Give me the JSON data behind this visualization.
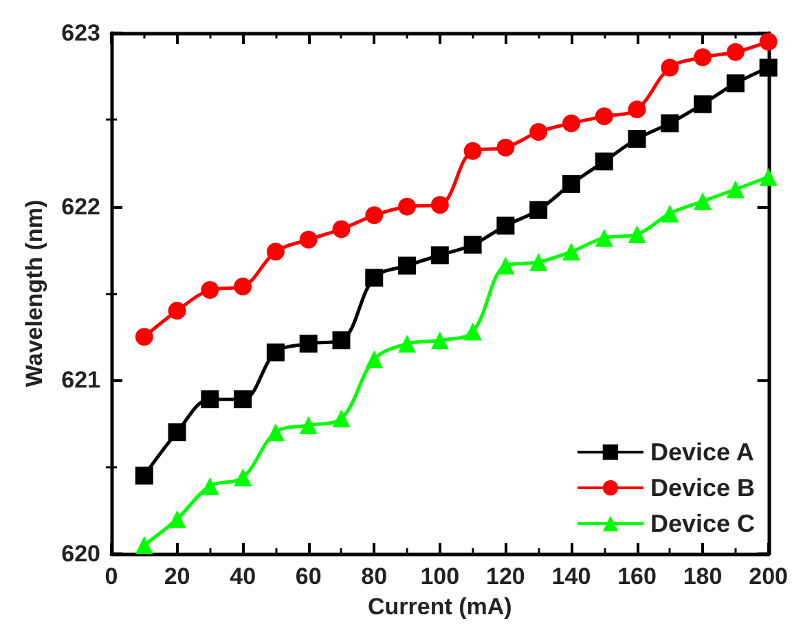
{
  "chart_data": {
    "type": "line",
    "xlabel": "Current (mA)",
    "ylabel": "Wavelength (nm)",
    "x": [
      10,
      20,
      30,
      40,
      50,
      60,
      70,
      80,
      90,
      100,
      110,
      120,
      130,
      140,
      150,
      160,
      170,
      180,
      190,
      200
    ],
    "series": [
      {
        "name": "Device A",
        "color": "#000000",
        "marker": "square",
        "values": [
          620.45,
          620.7,
          620.89,
          620.89,
          621.16,
          621.21,
          621.23,
          621.59,
          621.66,
          621.72,
          621.78,
          621.89,
          621.98,
          622.13,
          622.26,
          622.39,
          622.48,
          622.59,
          622.71,
          622.8
        ]
      },
      {
        "name": "Device B",
        "color": "#ff0000",
        "marker": "circle",
        "values": [
          621.25,
          621.4,
          621.52,
          621.54,
          621.74,
          621.81,
          621.87,
          621.95,
          622.0,
          622.01,
          622.32,
          622.34,
          622.43,
          622.48,
          622.52,
          622.56,
          622.8,
          622.86,
          622.89,
          622.95
        ]
      },
      {
        "name": "Device C",
        "color": "#00ff00",
        "marker": "triangle",
        "values": [
          620.05,
          620.2,
          620.39,
          620.44,
          620.7,
          620.74,
          620.78,
          621.12,
          621.21,
          621.23,
          621.28,
          621.66,
          621.68,
          621.74,
          621.82,
          621.84,
          621.96,
          622.03,
          622.1,
          622.17
        ]
      }
    ],
    "xlim": [
      0,
      200
    ],
    "xticks": [
      0,
      20,
      40,
      60,
      80,
      100,
      120,
      140,
      160,
      180,
      200
    ],
    "ylim": [
      620,
      623
    ],
    "yticks": [
      620,
      621,
      622,
      623
    ],
    "grid": false,
    "legend": "bottom right",
    "line_style": "solid"
  }
}
